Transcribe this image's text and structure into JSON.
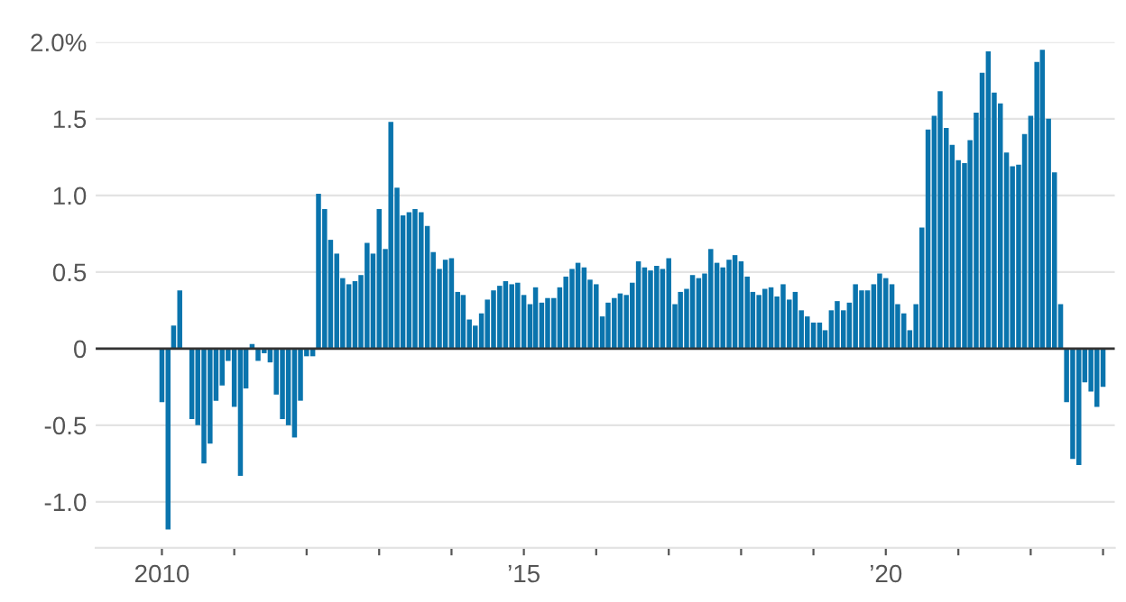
{
  "chart_data": {
    "type": "bar",
    "x": [
      "2010-01",
      "2010-02",
      "2010-03",
      "2010-04",
      "2010-05",
      "2010-06",
      "2010-07",
      "2010-08",
      "2010-09",
      "2010-10",
      "2010-11",
      "2010-12",
      "2011-01",
      "2011-02",
      "2011-03",
      "2011-04",
      "2011-05",
      "2011-06",
      "2011-07",
      "2011-08",
      "2011-09",
      "2011-10",
      "2011-11",
      "2011-12",
      "2012-01",
      "2012-02",
      "2012-03",
      "2012-04",
      "2012-05",
      "2012-06",
      "2012-07",
      "2012-08",
      "2012-09",
      "2012-10",
      "2012-11",
      "2012-12",
      "2013-01",
      "2013-02",
      "2013-03",
      "2013-04",
      "2013-05",
      "2013-06",
      "2013-07",
      "2013-08",
      "2013-09",
      "2013-10",
      "2013-11",
      "2013-12",
      "2014-01",
      "2014-02",
      "2014-03",
      "2014-04",
      "2014-05",
      "2014-06",
      "2014-07",
      "2014-08",
      "2014-09",
      "2014-10",
      "2014-11",
      "2014-12",
      "2015-01",
      "2015-02",
      "2015-03",
      "2015-04",
      "2015-05",
      "2015-06",
      "2015-07",
      "2015-08",
      "2015-09",
      "2015-10",
      "2015-11",
      "2015-12",
      "2016-01",
      "2016-02",
      "2016-03",
      "2016-04",
      "2016-05",
      "2016-06",
      "2016-07",
      "2016-08",
      "2016-09",
      "2016-10",
      "2016-11",
      "2016-12",
      "2017-01",
      "2017-02",
      "2017-03",
      "2017-04",
      "2017-05",
      "2017-06",
      "2017-07",
      "2017-08",
      "2017-09",
      "2017-10",
      "2017-11",
      "2017-12",
      "2018-01",
      "2018-02",
      "2018-03",
      "2018-04",
      "2018-05",
      "2018-06",
      "2018-07",
      "2018-08",
      "2018-09",
      "2018-10",
      "2018-11",
      "2018-12",
      "2019-01",
      "2019-02",
      "2019-03",
      "2019-04",
      "2019-05",
      "2019-06",
      "2019-07",
      "2019-08",
      "2019-09",
      "2019-10",
      "2019-11",
      "2019-12",
      "2020-01",
      "2020-02",
      "2020-03",
      "2020-04",
      "2020-05",
      "2020-06",
      "2020-07",
      "2020-08",
      "2020-09",
      "2020-10",
      "2020-11",
      "2020-12",
      "2021-01",
      "2021-02",
      "2021-03",
      "2021-04",
      "2021-05",
      "2021-06",
      "2021-07",
      "2021-08",
      "2021-09",
      "2021-10",
      "2021-11",
      "2021-12",
      "2022-01",
      "2022-02",
      "2022-03",
      "2022-04",
      "2022-05",
      "2022-06",
      "2022-07",
      "2022-08",
      "2022-09",
      "2022-10",
      "2022-11",
      "2022-12",
      "2023-01"
    ],
    "values": [
      -0.35,
      -1.18,
      0.15,
      0.38,
      null,
      -0.46,
      -0.5,
      -0.75,
      -0.62,
      -0.34,
      -0.24,
      -0.08,
      -0.38,
      -0.83,
      -0.26,
      0.03,
      -0.08,
      -0.03,
      -0.09,
      -0.3,
      -0.46,
      -0.5,
      -0.58,
      -0.34,
      -0.05,
      -0.05,
      1.01,
      0.91,
      0.71,
      0.62,
      0.46,
      0.42,
      0.44,
      0.48,
      0.69,
      0.62,
      0.91,
      0.65,
      1.48,
      1.05,
      0.87,
      0.89,
      0.91,
      0.89,
      0.8,
      0.63,
      0.52,
      0.58,
      0.59,
      0.37,
      0.35,
      0.19,
      0.15,
      0.23,
      0.32,
      0.38,
      0.41,
      0.44,
      0.42,
      0.43,
      0.35,
      0.29,
      0.4,
      0.3,
      0.33,
      0.33,
      0.4,
      0.47,
      0.52,
      0.56,
      0.53,
      0.45,
      0.42,
      0.21,
      0.3,
      0.33,
      0.36,
      0.35,
      0.43,
      0.57,
      0.53,
      0.51,
      0.54,
      0.52,
      0.59,
      0.29,
      0.37,
      0.39,
      0.48,
      0.46,
      0.49,
      0.65,
      0.56,
      0.53,
      0.58,
      0.61,
      0.57,
      0.47,
      0.37,
      0.35,
      0.39,
      0.4,
      0.34,
      0.42,
      0.32,
      0.37,
      0.25,
      0.21,
      0.17,
      0.17,
      0.12,
      0.25,
      0.31,
      0.25,
      0.3,
      0.42,
      0.38,
      0.38,
      0.42,
      0.49,
      0.46,
      0.42,
      0.29,
      0.23,
      0.12,
      0.29,
      0.79,
      1.43,
      1.52,
      1.68,
      1.44,
      1.33,
      1.23,
      1.21,
      1.36,
      1.54,
      1.8,
      1.94,
      1.67,
      1.6,
      1.28,
      1.19,
      1.2,
      1.4,
      1.52,
      1.87,
      1.95,
      1.5,
      1.15,
      0.29,
      -0.35,
      -0.72,
      -0.76,
      -0.22,
      -0.28,
      -0.38,
      -0.25
    ],
    "color": "#0a74ad",
    "xlim": [
      "2009-02",
      "2023-03"
    ],
    "xticks": [
      {
        "value": "2010-01",
        "label": "2010"
      },
      {
        "value": "2011-01",
        "label": null
      },
      {
        "value": "2012-01",
        "label": null
      },
      {
        "value": "2013-01",
        "label": null
      },
      {
        "value": "2014-01",
        "label": null
      },
      {
        "value": "2015-01",
        "label": "’15"
      },
      {
        "value": "2016-01",
        "label": null
      },
      {
        "value": "2017-01",
        "label": null
      },
      {
        "value": "2018-01",
        "label": null
      },
      {
        "value": "2019-01",
        "label": null
      },
      {
        "value": "2020-01",
        "label": "’20"
      },
      {
        "value": "2021-01",
        "label": null
      },
      {
        "value": "2022-01",
        "label": null
      },
      {
        "value": "2023-01",
        "label": null
      }
    ],
    "ylim": [
      -1.3,
      2.0
    ],
    "yticks": [
      {
        "value": -1.0,
        "label": "-1.0"
      },
      -0.5,
      0,
      0.5,
      {
        "value": 1.0,
        "label": "1.0"
      },
      1.5,
      {
        "value": 2.0,
        "label": "2.0%"
      }
    ],
    "grid": "y",
    "ref_lines": [
      {
        "axis": "y",
        "value": 0,
        "label": null,
        "color": "#333333"
      }
    ]
  }
}
